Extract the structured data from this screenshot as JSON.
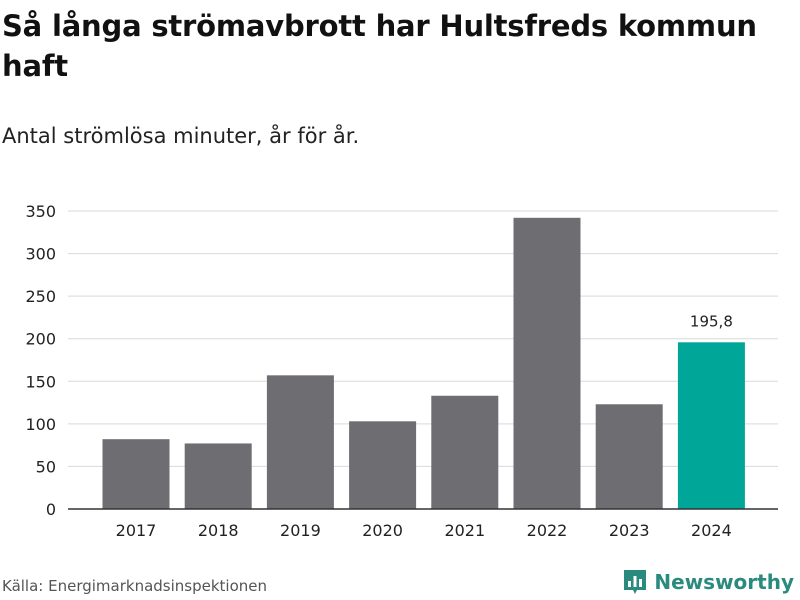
{
  "colors": {
    "bar": "#6e6d72",
    "highlight": "#00a698",
    "grid": "#d9d9d9",
    "axis": "#333333",
    "brand": "#2b8a7e"
  },
  "footer": {
    "source": "Källa: Energimarknadsinspektionen",
    "brand": "Newsworthy",
    "brand_icon": "bar-chart-logo-icon"
  },
  "chart_data": {
    "type": "bar",
    "title": "Så långa strömavbrott har Hultsfreds kommun haft",
    "subtitle": "Antal strömlösa minuter, år för år.",
    "xlabel": "",
    "ylabel": "",
    "categories": [
      "2017",
      "2018",
      "2019",
      "2020",
      "2021",
      "2022",
      "2023",
      "2024"
    ],
    "values": [
      82,
      77,
      157,
      103,
      133,
      342,
      123,
      195.8
    ],
    "highlight_index": 7,
    "data_labels": [
      {
        "index": 7,
        "text": "195,8"
      }
    ],
    "ylim": [
      0,
      350
    ],
    "yticks": [
      0,
      50,
      100,
      150,
      200,
      250,
      300,
      350
    ],
    "grid": true,
    "legend": "none"
  }
}
